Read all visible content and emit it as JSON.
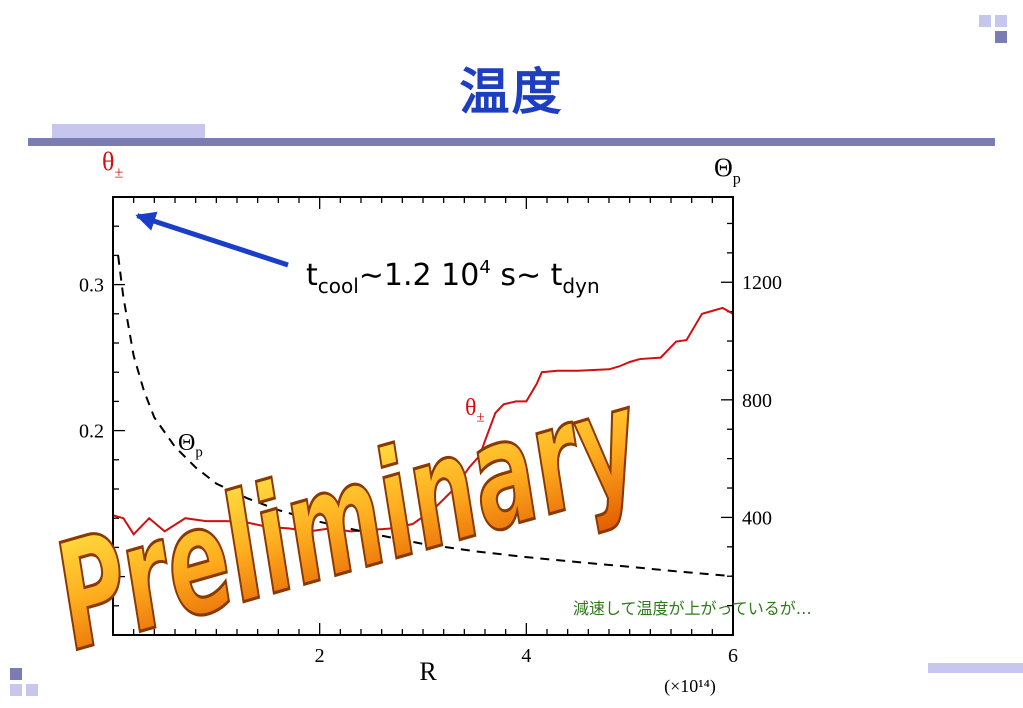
{
  "slide": {
    "title": "温度",
    "note": "減速して温度が上がっているが…",
    "watermark": "Preliminary"
  },
  "colors": {
    "title": "#1d3fbf",
    "theta_pm_series": "#d01010",
    "Theta_p_series": "#000000",
    "arrow": "#1a3ec8",
    "note": "#2f7a1a",
    "accent_bar": "#7c7cb4",
    "accent_light": "#c6c6ee"
  },
  "chart_data": {
    "type": "line",
    "xlabel": "R",
    "x_multiplier": "(×10¹⁴)",
    "xlim": [
      0,
      6
    ],
    "x_ticks": [
      2,
      4,
      6
    ],
    "y_left_label": "θ±",
    "y_left_lim": [
      0.06,
      0.36
    ],
    "y_left_ticks": [
      0.2,
      0.3
    ],
    "y_right_label": "Θp",
    "y_right_lim": [
      0,
      1490
    ],
    "y_right_ticks": [
      400,
      800,
      1200
    ],
    "annotation": {
      "text_parts": [
        "t",
        "cool",
        "∼1.2 10",
        "4",
        " s∼ t",
        "dyn"
      ],
      "arrow_target": [
        0.08,
        0.35
      ]
    },
    "series": [
      {
        "name": "θ±",
        "axis": "left",
        "x": [
          0.0,
          0.1,
          0.2,
          0.35,
          0.5,
          0.7,
          0.9,
          1.1,
          1.3,
          1.5,
          1.7,
          1.9,
          2.1,
          2.3,
          2.5,
          2.7,
          2.9,
          3.1,
          3.3,
          3.45,
          3.55,
          3.6,
          3.7,
          3.78,
          3.9,
          4.0,
          4.1,
          4.15,
          4.3,
          4.5,
          4.8,
          4.9,
          5.0,
          5.1,
          5.3,
          5.45,
          5.55,
          5.7,
          5.8,
          5.9,
          6.0
        ],
        "values": [
          0.142,
          0.14,
          0.129,
          0.14,
          0.131,
          0.14,
          0.138,
          0.138,
          0.137,
          0.134,
          0.133,
          0.131,
          0.133,
          0.131,
          0.132,
          0.133,
          0.136,
          0.146,
          0.16,
          0.175,
          0.183,
          0.193,
          0.212,
          0.218,
          0.22,
          0.22,
          0.232,
          0.24,
          0.241,
          0.241,
          0.242,
          0.244,
          0.247,
          0.249,
          0.25,
          0.261,
          0.262,
          0.28,
          0.282,
          0.284,
          0.28
        ]
      },
      {
        "name": "Θp",
        "axis": "right",
        "x": [
          0.05,
          0.1,
          0.2,
          0.3,
          0.4,
          0.6,
          0.8,
          1.0,
          1.3,
          1.6,
          2.0,
          2.5,
          3.0,
          3.5,
          4.0,
          4.5,
          5.0,
          5.5,
          6.0
        ],
        "values": [
          1290,
          1150,
          950,
          830,
          740,
          640,
          570,
          515,
          465,
          425,
          385,
          345,
          310,
          285,
          265,
          248,
          232,
          215,
          200
        ]
      }
    ]
  }
}
